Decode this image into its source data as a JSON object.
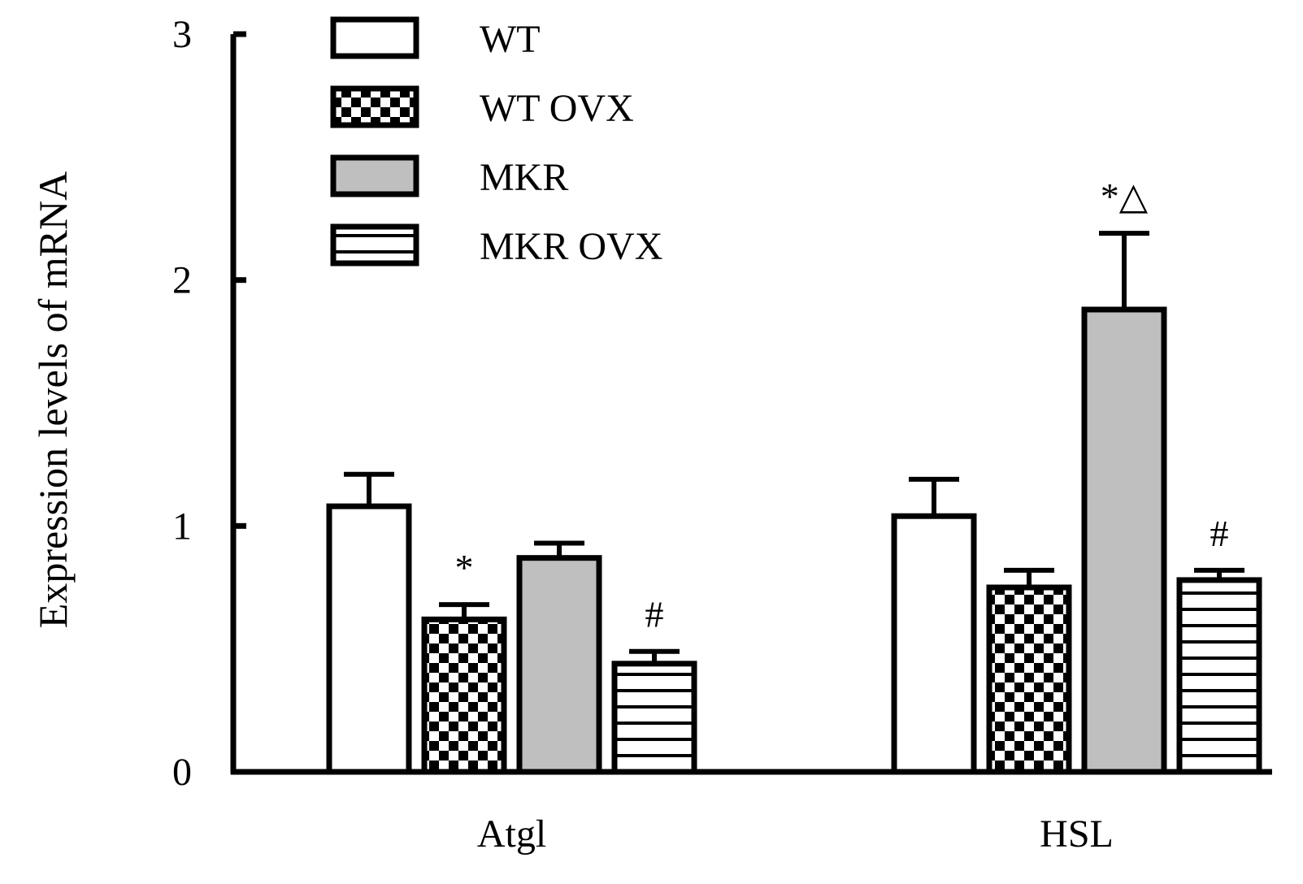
{
  "chart_data": {
    "type": "bar",
    "title": "",
    "xlabel": "",
    "ylabel": "Expression levels of mRNA",
    "ylim": [
      0,
      3
    ],
    "yticks": [
      "0",
      "1",
      "2",
      "3"
    ],
    "grid": false,
    "legend_position": "top-left",
    "categories": [
      "Atgl",
      "HSL"
    ],
    "series": [
      {
        "name": "WT",
        "values": [
          1.08,
          1.04
        ],
        "errors": [
          0.13,
          0.15
        ],
        "fill": "white",
        "color": "#ffffff",
        "annotations": [
          "",
          ""
        ]
      },
      {
        "name": "WT OVX",
        "values": [
          0.62,
          0.75
        ],
        "errors": [
          0.06,
          0.07
        ],
        "fill": "checker",
        "color": "#000000",
        "annotations": [
          "*",
          ""
        ]
      },
      {
        "name": "MKR",
        "values": [
          0.87,
          1.88
        ],
        "errors": [
          0.06,
          0.31
        ],
        "fill": "gray",
        "color": "#bfbfbf",
        "annotations": [
          "",
          "*△"
        ]
      },
      {
        "name": "MKR OVX",
        "values": [
          0.44,
          0.78
        ],
        "errors": [
          0.05,
          0.04
        ],
        "fill": "hstripes",
        "color": "#000000",
        "annotations": [
          "#",
          "#"
        ]
      }
    ]
  }
}
